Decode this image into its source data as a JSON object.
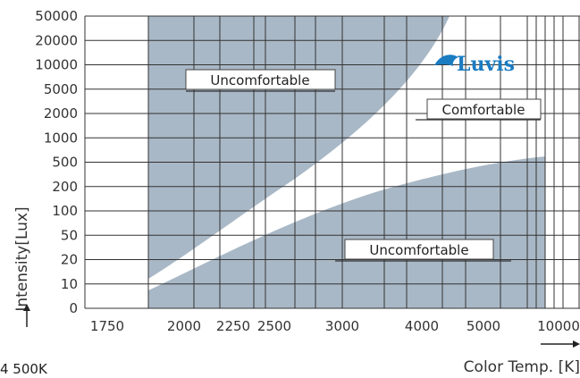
{
  "chart_data": {
    "type": "area",
    "xlabel": "Color Temp. [K]",
    "ylabel": "Intensity[Lux]",
    "x_ticks": [
      "1750",
      "2000",
      "2250",
      "2500",
      "3000",
      "4000",
      "5000",
      "10000"
    ],
    "y_ticks": [
      "0",
      "10",
      "20",
      "50",
      "100",
      "200",
      "500",
      "1000",
      "2000",
      "5000",
      "10000",
      "20000",
      "50000"
    ],
    "regions": [
      {
        "label": "Uncomfortable",
        "position": "upper-left"
      },
      {
        "label": "Comfortable",
        "position": "right"
      },
      {
        "label": "Uncomfortable",
        "position": "lower-right"
      }
    ],
    "upper_boundary": {
      "x": [
        "2000",
        "2250",
        "2500",
        "3000",
        "4000",
        "5000"
      ],
      "y": [
        20,
        50,
        100,
        500,
        5000,
        50000
      ]
    },
    "lower_boundary": {
      "x": [
        "2000",
        "2250",
        "2500",
        "3000",
        "4000",
        "5000",
        "10000"
      ],
      "y": [
        10,
        20,
        50,
        100,
        200,
        300,
        500
      ]
    },
    "grid": true,
    "colors": {
      "uncomfortable": "#a9b8c6",
      "comfortable": "#ffffff",
      "logo": "#1b7cc2"
    }
  },
  "logo": "Luvis",
  "corner_text": "4 500K"
}
